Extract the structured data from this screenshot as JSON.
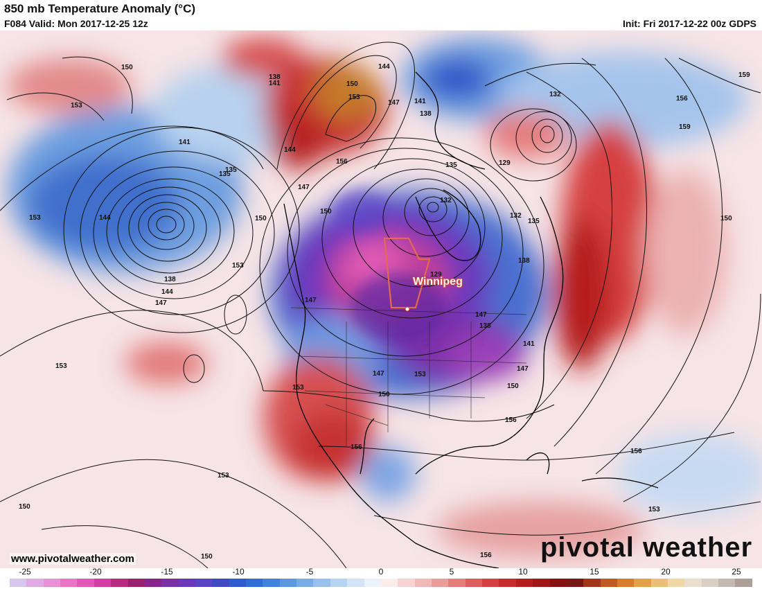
{
  "header": {
    "title": "850 mb Temperature Anomaly (°C)",
    "valid": "F084 Valid: Mon 2017-12-25 12z",
    "init": "Init: Fri 2017-12-22 00z GDPS"
  },
  "map": {
    "city_label": "Winnipeg",
    "contour_labels": [
      "150",
      "153",
      "144",
      "138",
      "141",
      "150",
      "153",
      "147",
      "156",
      "141",
      "144",
      "138",
      "135",
      "129",
      "132",
      "159",
      "156",
      "159",
      "141",
      "135",
      "144",
      "147",
      "150",
      "153",
      "138",
      "144",
      "147",
      "150",
      "147",
      "135",
      "132",
      "132",
      "129",
      "135",
      "138",
      "147",
      "138",
      "141",
      "147",
      "153",
      "147",
      "153",
      "150",
      "150",
      "156",
      "156",
      "153",
      "153",
      "153",
      "150",
      "150",
      "156",
      "153",
      "156",
      "153",
      "150"
    ]
  },
  "footer": {
    "website": "www.pivotalweather.com",
    "brand": "pivotal weather"
  },
  "colorbar": {
    "ticks": [
      "-25",
      "-20",
      "-15",
      "-10",
      "-5",
      "0",
      "5",
      "10",
      "15",
      "20",
      "25"
    ],
    "colors": [
      "#d7c6ee",
      "#e1a9e3",
      "#ea8fd6",
      "#ee73c8",
      "#e656b6",
      "#d43d9f",
      "#b8297f",
      "#9b1f6e",
      "#8a2391",
      "#7a2ea8",
      "#6b38bd",
      "#5843c9",
      "#3f49c6",
      "#2f5bd1",
      "#2c6fd9",
      "#3d84df",
      "#5a98e4",
      "#78ace9",
      "#97c0ee",
      "#b6d3f3",
      "#d3e4f7",
      "#ebf2fb",
      "#fbecec",
      "#f7d3d3",
      "#f2b8b8",
      "#ec9a9a",
      "#e57b7b",
      "#de5c5c",
      "#d63f3f",
      "#c92a2a",
      "#b61d1d",
      "#a01515",
      "#8a0f0f",
      "#7a1515",
      "#a3361a",
      "#c25a1e",
      "#d97c2c",
      "#e5a046",
      "#ecbf74",
      "#f0d8a5",
      "#eadfcf",
      "#d9cfc4",
      "#c4b9b0",
      "#ad9f97"
    ]
  }
}
